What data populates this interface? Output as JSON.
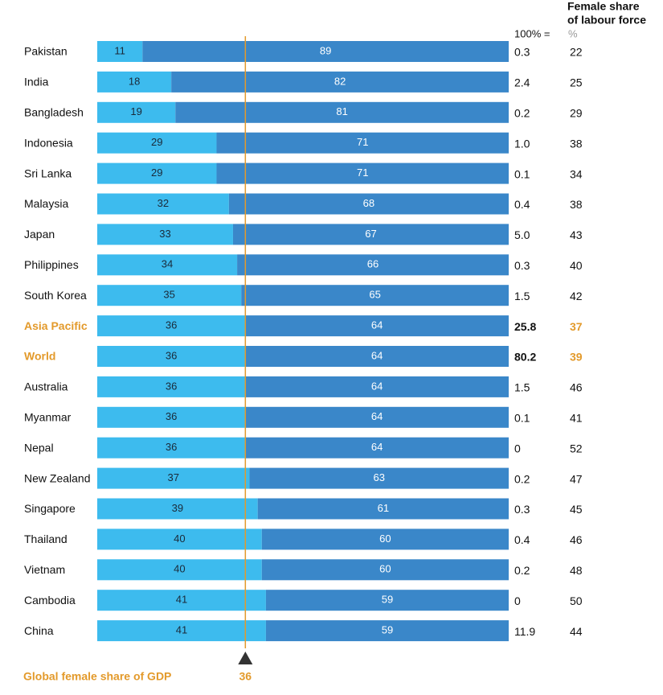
{
  "chart_data": {
    "type": "bar",
    "orientation": "horizontal",
    "stacked": true,
    "categories": [
      "Pakistan",
      "India",
      "Bangladesh",
      "Indonesia",
      "Sri Lanka",
      "Malaysia",
      "Japan",
      "Philippines",
      "South Korea",
      "Asia Pacific",
      "World",
      "Australia",
      "Myanmar",
      "Nepal",
      "New Zealand",
      "Singapore",
      "Thailand",
      "Vietnam",
      "Cambodia",
      "China"
    ],
    "highlight": [
      "Asia Pacific",
      "World"
    ],
    "highlight_color": "#e39a2b",
    "xlim": [
      0,
      100
    ],
    "series": [
      {
        "color": "#3dbbee",
        "values": [
          11,
          18,
          19,
          29,
          29,
          32,
          33,
          34,
          35,
          36,
          36,
          36,
          36,
          36,
          37,
          39,
          40,
          40,
          41,
          41
        ]
      },
      {
        "color": "#3a87c9",
        "values": [
          89,
          82,
          81,
          71,
          71,
          68,
          67,
          66,
          65,
          64,
          64,
          64,
          64,
          64,
          63,
          61,
          60,
          60,
          59,
          59
        ]
      }
    ],
    "totals": {
      "label": "100% =",
      "values": [
        0.3,
        2.4,
        0.2,
        1.0,
        0.1,
        0.4,
        5.0,
        0.3,
        1.5,
        25.8,
        80.2,
        1.5,
        0.1,
        0,
        0.2,
        0.3,
        0.4,
        0.2,
        0,
        11.9
      ],
      "value_labels": [
        "0.3",
        "2.4",
        "0.2",
        "1.0",
        "0.1",
        "0.4",
        "5.0",
        "0.3",
        "1.5",
        "25.8",
        "80.2",
        "1.5",
        "0.1",
        "0",
        "0.2",
        "0.3",
        "0.4",
        "0.2",
        "0",
        "11.9"
      ]
    },
    "labour_force": {
      "title_lines": [
        "Female share",
        "of labour force"
      ],
      "unit": "%",
      "values": [
        22,
        25,
        29,
        38,
        34,
        38,
        43,
        40,
        42,
        37,
        39,
        46,
        41,
        52,
        47,
        45,
        46,
        48,
        50,
        44
      ]
    },
    "reference": {
      "label": "Global female share of GDP",
      "value": 36
    }
  }
}
